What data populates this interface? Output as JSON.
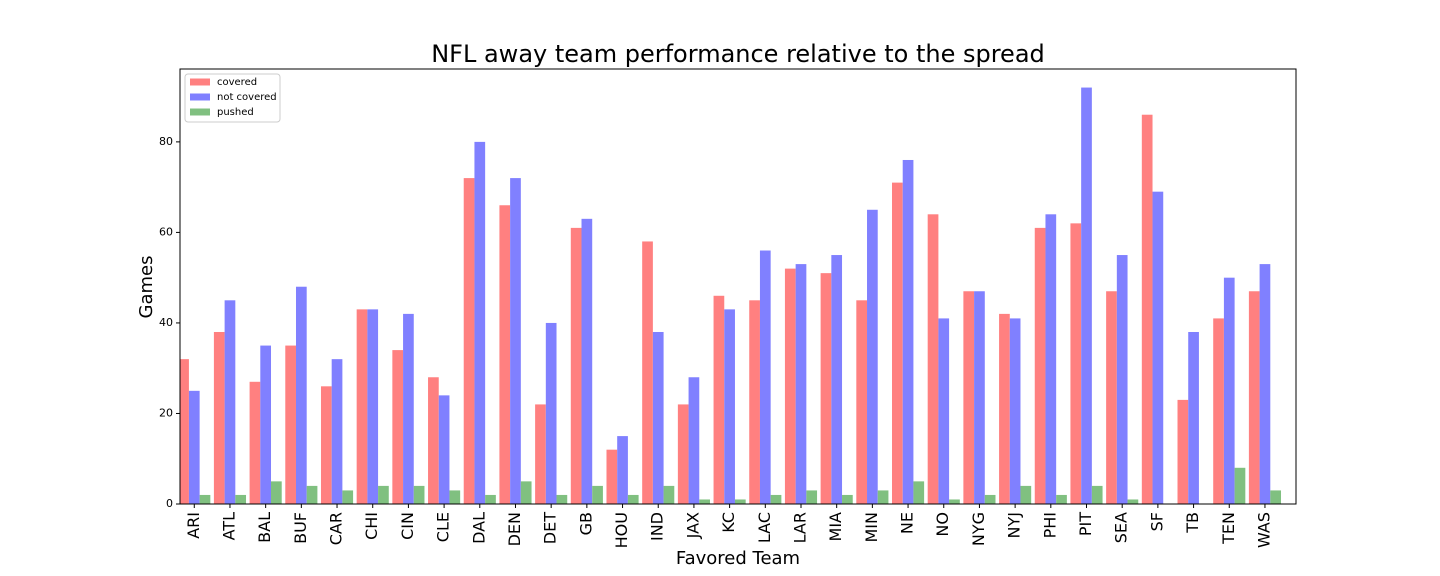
{
  "chart_data": {
    "type": "bar",
    "title": "NFL away team performance relative to the spread",
    "x_label": "Favored Team",
    "y_label": "Games",
    "categories": [
      "ARI",
      "ATL",
      "BAL",
      "BUF",
      "CAR",
      "CHI",
      "CIN",
      "CLE",
      "DAL",
      "DEN",
      "DET",
      "GB",
      "HOU",
      "IND",
      "JAX",
      "KC",
      "LAC",
      "LAR",
      "MIA",
      "MIN",
      "NE",
      "NO",
      "NYG",
      "NYJ",
      "PHI",
      "PIT",
      "SEA",
      "SF",
      "TB",
      "TEN",
      "WAS"
    ],
    "series": [
      {
        "name": "covered",
        "color": "#ff8080",
        "values": [
          32,
          38,
          27,
          35,
          26,
          43,
          34,
          28,
          72,
          66,
          22,
          61,
          12,
          58,
          22,
          46,
          45,
          52,
          51,
          45,
          71,
          64,
          47,
          42,
          61,
          62,
          47,
          86,
          23,
          41,
          47
        ]
      },
      {
        "name": "not covered",
        "color": "#8080ff",
        "values": [
          25,
          45,
          35,
          48,
          32,
          43,
          42,
          24,
          80,
          72,
          40,
          63,
          15,
          38,
          28,
          43,
          56,
          53,
          55,
          65,
          76,
          41,
          47,
          41,
          64,
          92,
          55,
          69,
          38,
          50,
          53
        ]
      },
      {
        "name": "pushed",
        "color": "#80c080",
        "values": [
          2,
          2,
          5,
          4,
          3,
          4,
          4,
          3,
          2,
          5,
          2,
          4,
          2,
          4,
          1,
          1,
          2,
          3,
          2,
          3,
          5,
          1,
          2,
          4,
          2,
          4,
          1,
          0,
          0,
          8,
          3
        ]
      }
    ],
    "ylim": [
      0,
      96.1
    ],
    "yticks": [
      0,
      20,
      40,
      60,
      80
    ],
    "legend": "upper left"
  }
}
